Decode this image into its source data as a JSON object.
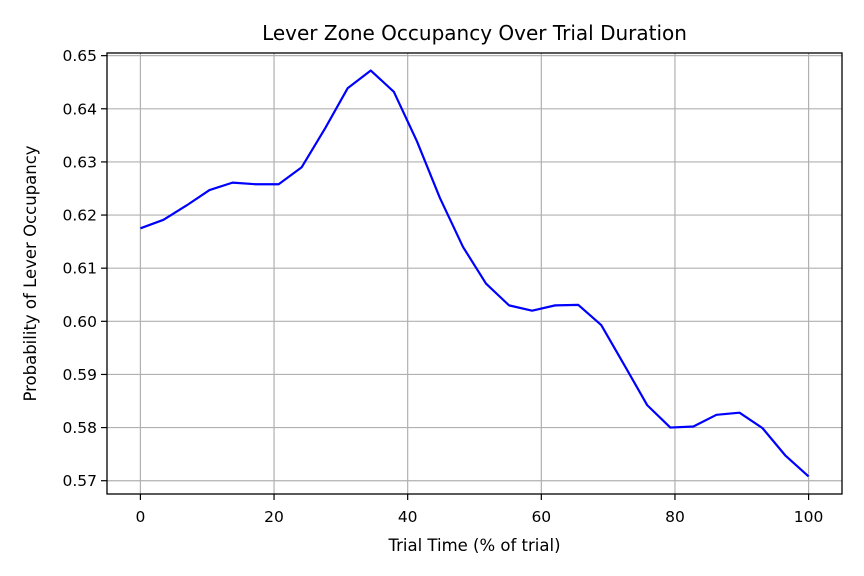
{
  "chart_data": {
    "type": "line",
    "title": "Lever Zone Occupancy Over Trial Duration",
    "xlabel": "Trial Time (% of trial)",
    "ylabel": "Probability of Lever Occupancy",
    "xlim": [
      -5,
      105
    ],
    "ylim": [
      0.5675,
      0.6505
    ],
    "xticks": [
      0,
      20,
      40,
      60,
      80,
      100
    ],
    "xtick_labels": [
      "0",
      "20",
      "40",
      "60",
      "80",
      "100"
    ],
    "yticks": [
      0.57,
      0.58,
      0.59,
      0.6,
      0.61,
      0.62,
      0.63,
      0.64,
      0.65
    ],
    "ytick_labels": [
      "0.57",
      "0.58",
      "0.59",
      "0.60",
      "0.61",
      "0.62",
      "0.63",
      "0.64",
      "0.65"
    ],
    "grid": true,
    "series": [
      {
        "color": "#0000ff",
        "x": [
          0,
          3.45,
          6.9,
          10.34,
          13.79,
          17.24,
          20.69,
          24.14,
          27.59,
          31.03,
          34.48,
          37.93,
          41.38,
          44.83,
          48.28,
          51.72,
          55.17,
          58.62,
          62.07,
          65.52,
          68.97,
          72.41,
          75.86,
          79.31,
          82.76,
          86.21,
          89.66,
          93.1,
          96.55,
          100
        ],
        "y": [
          0.6175,
          0.6191,
          0.6218,
          0.6247,
          0.6261,
          0.6258,
          0.6258,
          0.629,
          0.6362,
          0.6439,
          0.6472,
          0.6432,
          0.6339,
          0.6232,
          0.614,
          0.6071,
          0.603,
          0.602,
          0.603,
          0.6031,
          0.5993,
          0.5918,
          0.5842,
          0.58,
          0.5802,
          0.5824,
          0.5828,
          0.5799,
          0.5747,
          0.5708
        ]
      }
    ]
  }
}
